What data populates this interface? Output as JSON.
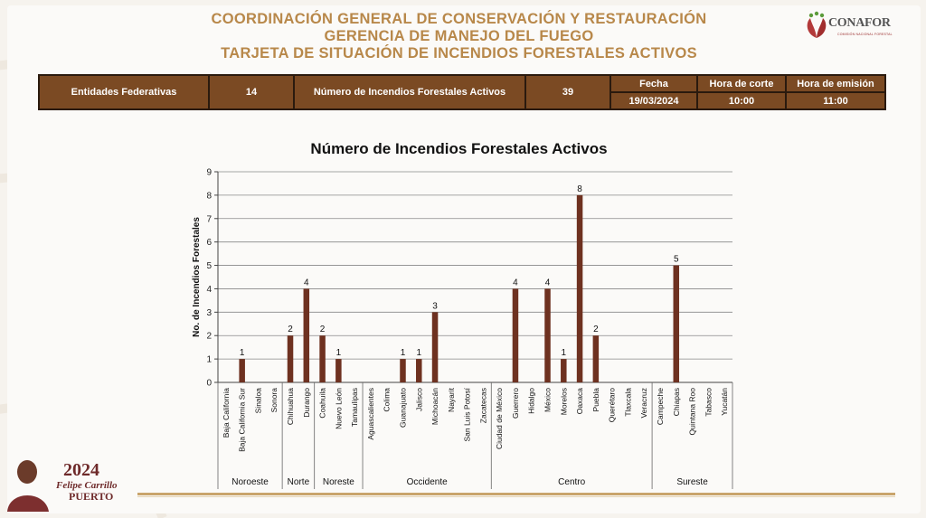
{
  "header": {
    "line1": "COORDINACIÓN GENERAL DE CONSERVACIÓN Y RESTAURACIÓN",
    "line2": "GERENCIA DE MANEJO DEL FUEGO",
    "line3": "TARJETA DE SITUACIÓN DE INCENDIOS FORESTALES ACTIVOS"
  },
  "logo": {
    "name": "CONAFOR",
    "subtitle": "COMISIÓN NACIONAL FORESTAL",
    "icon": "leaf-logo-icon"
  },
  "info": {
    "entidades_label": "Entidades Federativas",
    "entidades_value": "14",
    "incendios_label": "Número de Incendios Forestales  Activos",
    "incendios_value": "39",
    "fecha_label": "Fecha",
    "fecha_value": "19/03/2024",
    "corte_label": "Hora de corte",
    "corte_value": "10:00",
    "emision_label": "Hora de emisión",
    "emision_value": "11:00"
  },
  "badge": {
    "year": "2024",
    "line1": "Felipe Carrillo",
    "line2": "PUERTO"
  },
  "colors": {
    "bar": "#6e3120",
    "header_gold": "#b8884a",
    "table_bg": "#7b4a23"
  },
  "chart_data": {
    "type": "bar",
    "title": "Número de Incendios Forestales Activos",
    "ylabel": "No. de Incendios Forestales",
    "xlabel": "",
    "ylim": [
      0,
      9
    ],
    "yticks": [
      0,
      1,
      2,
      3,
      4,
      5,
      6,
      7,
      8,
      9
    ],
    "grid": true,
    "categories": [
      "Baja California",
      "Baja California Sur",
      "Sinaloa",
      "Sonora",
      "Chihuahua",
      "Durango",
      "Coahuila",
      "Nuevo León",
      "Tamaulipas",
      "Aguascalientes",
      "Colima",
      "Guanajuato",
      "Jalisco",
      "Michoacán",
      "Nayarit",
      "San Luis Potosí",
      "Zacatecas",
      "Ciudad de México",
      "Guerrero",
      "Hidalgo",
      "México",
      "Morelos",
      "Oaxaca",
      "Puebla",
      "Querétaro",
      "Tlaxcala",
      "Veracruz",
      "Campeche",
      "Chiapas",
      "Quintana Roo",
      "Tabasco",
      "Yucatán"
    ],
    "values": [
      0,
      1,
      0,
      0,
      2,
      4,
      2,
      1,
      0,
      0,
      0,
      1,
      1,
      3,
      0,
      0,
      0,
      0,
      4,
      0,
      4,
      1,
      8,
      2,
      0,
      0,
      0,
      0,
      5,
      0,
      0,
      0
    ],
    "regions": [
      {
        "name": "Noroeste",
        "count": 4
      },
      {
        "name": "Norte",
        "count": 2
      },
      {
        "name": "Noreste",
        "count": 3
      },
      {
        "name": "Occidente",
        "count": 8
      },
      {
        "name": "Centro",
        "count": 10
      },
      {
        "name": "Sureste",
        "count": 5
      }
    ]
  }
}
